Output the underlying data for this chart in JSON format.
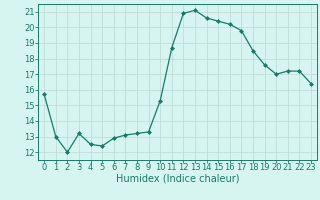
{
  "x": [
    0,
    1,
    2,
    3,
    4,
    5,
    6,
    7,
    8,
    9,
    10,
    11,
    12,
    13,
    14,
    15,
    16,
    17,
    18,
    19,
    20,
    21,
    22,
    23
  ],
  "y": [
    15.7,
    13.0,
    12.0,
    13.2,
    12.5,
    12.4,
    12.9,
    13.1,
    13.2,
    13.3,
    15.3,
    18.7,
    20.9,
    21.1,
    20.6,
    20.4,
    20.2,
    19.8,
    18.5,
    17.6,
    17.0,
    17.2,
    17.2,
    16.4
  ],
  "line_color": "#1a7a6a",
  "marker": "D",
  "marker_size": 2,
  "bg_color": "#d6f5f0",
  "grid_color": "#c0ddd8",
  "xlabel": "Humidex (Indice chaleur)",
  "ylim": [
    11.5,
    21.5
  ],
  "xlim": [
    -0.5,
    23.5
  ],
  "yticks": [
    12,
    13,
    14,
    15,
    16,
    17,
    18,
    19,
    20,
    21
  ],
  "xticks": [
    0,
    1,
    2,
    3,
    4,
    5,
    6,
    7,
    8,
    9,
    10,
    11,
    12,
    13,
    14,
    15,
    16,
    17,
    18,
    19,
    20,
    21,
    22,
    23
  ],
  "axis_color": "#1a7a6a",
  "tick_color": "#1a7a6a",
  "label_color": "#1a7a6a",
  "xlabel_fontsize": 7,
  "tick_fontsize": 6,
  "linewidth": 0.9
}
